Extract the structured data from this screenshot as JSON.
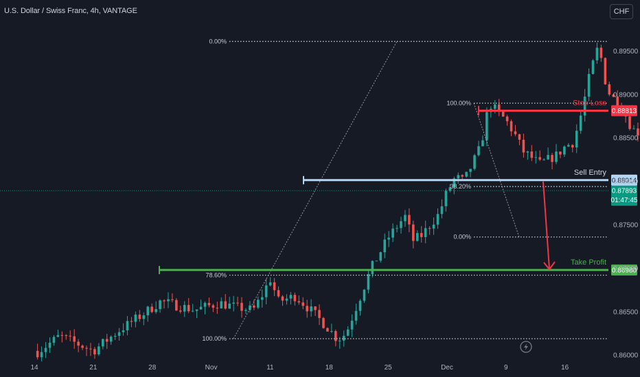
{
  "header": {
    "title": "U.S. Dollar / Swiss Franc, 4h, VANTAGE",
    "currency": "CHF"
  },
  "colors": {
    "background": "#161a25",
    "up": "#26a69a",
    "down": "#ef5350",
    "stop_loss": "#f23645",
    "sell_entry": "#b4d6f5",
    "take_profit": "#4caf50",
    "current_price": "#089981"
  },
  "icons": {
    "replay": "lightning-icon"
  },
  "chart_data": {
    "type": "candlestick",
    "symbol": "USDCHF",
    "interval": "4h",
    "x_ticks": [
      "14",
      "21",
      "28",
      "Nov",
      "11",
      "18",
      "25",
      "Dec",
      "9",
      "16"
    ],
    "y_ticks": [
      "0.89500",
      "0.89000",
      "0.88500",
      "0.88000",
      "0.87500",
      "0.87000",
      "0.86500",
      "0.86000"
    ],
    "ylim": [
      0.8597,
      0.8985
    ],
    "price_path": [
      [
        0,
        0.8601
      ],
      [
        3,
        0.8622
      ],
      [
        7,
        0.8605
      ],
      [
        10,
        0.8628
      ],
      [
        13,
        0.8648
      ],
      [
        15,
        0.8662
      ],
      [
        17,
        0.8657
      ],
      [
        19,
        0.8652
      ],
      [
        22,
        0.866
      ],
      [
        24,
        0.8655
      ],
      [
        26,
        0.8652
      ],
      [
        27,
        0.8668
      ],
      [
        28,
        0.8688
      ],
      [
        29,
        0.8662
      ],
      [
        31,
        0.8668
      ],
      [
        33,
        0.865
      ],
      [
        34,
        0.864
      ],
      [
        35,
        0.863
      ],
      [
        36,
        0.8618
      ],
      [
        37,
        0.8625
      ],
      [
        38,
        0.865
      ],
      [
        40,
        0.87
      ],
      [
        42,
        0.8735
      ],
      [
        44,
        0.876
      ],
      [
        45,
        0.8732
      ],
      [
        46,
        0.8738
      ],
      [
        48,
        0.8762
      ],
      [
        49,
        0.8788
      ],
      [
        50,
        0.8805
      ],
      [
        51,
        0.88
      ],
      [
        53,
        0.884
      ],
      [
        54,
        0.889
      ],
      [
        56,
        0.887
      ],
      [
        57,
        0.8855
      ],
      [
        58,
        0.8835
      ],
      [
        60,
        0.882
      ],
      [
        62,
        0.883
      ],
      [
        63,
        0.884
      ],
      [
        64,
        0.8845
      ],
      [
        65,
        0.888
      ],
      [
        66,
        0.8925
      ],
      [
        67,
        0.8957
      ],
      [
        68,
        0.8905
      ],
      [
        70,
        0.888
      ],
      [
        71,
        0.886
      ],
      [
        73,
        0.885
      ],
      [
        75,
        0.883
      ],
      [
        76,
        0.881
      ],
      [
        78,
        0.882
      ],
      [
        79,
        0.8828
      ],
      [
        80,
        0.881
      ],
      [
        82,
        0.8845
      ],
      [
        83,
        0.8872
      ],
      [
        84,
        0.888
      ],
      [
        85,
        0.886
      ],
      [
        86,
        0.8875
      ],
      [
        87,
        0.885
      ],
      [
        88,
        0.8835
      ],
      [
        89,
        0.883
      ],
      [
        90,
        0.8802
      ],
      [
        91,
        0.879
      ],
      [
        92,
        0.878
      ],
      [
        93,
        0.8788
      ]
    ],
    "x_tick_positions": [
      0,
      7,
      14,
      21,
      28,
      35,
      42,
      49,
      56,
      63
    ],
    "fibonacci": [
      {
        "levels": [
          {
            "label": "0.00%",
            "value": 0.8961
          },
          {
            "label": "78.60%",
            "value": 0.8692
          },
          {
            "label": "100.00%",
            "value": 0.8619
          }
        ]
      },
      {
        "levels": [
          {
            "label": "100.00%",
            "value": 0.889
          },
          {
            "label": "38.20%",
            "value": 0.8794
          },
          {
            "label": "0.00%",
            "value": 0.8736
          }
        ]
      }
    ],
    "annotations": {
      "stop_loss": {
        "label": "Stop Loss",
        "price": "0.88813",
        "value": 0.88813
      },
      "sell_entry": {
        "label": "Sell Entry",
        "price": "0.88014",
        "value": 0.88014
      },
      "take_profit": {
        "label": "Take Profit",
        "price": "0.86980",
        "value": 0.8698
      }
    },
    "current_price": {
      "price": "0.87893",
      "countdown": "01:47:45",
      "value": 0.87893
    }
  }
}
